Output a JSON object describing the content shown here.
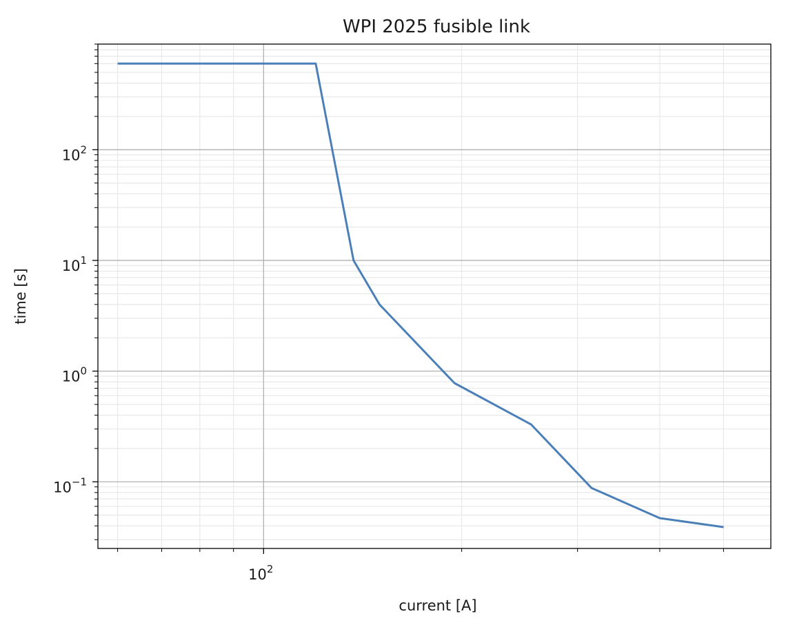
{
  "chart_data": {
    "type": "line",
    "title": "WPI 2025 fusible link",
    "xlabel": "current [A]",
    "ylabel": "time [s]",
    "xscale": "log",
    "yscale": "log",
    "xlim": [
      56,
      590
    ],
    "ylim": [
      0.025,
      900
    ],
    "grid": true,
    "x_major_ticks": [
      {
        "value": 100,
        "base": "10",
        "exp": "2"
      }
    ],
    "y_major_ticks": [
      {
        "value": 0.1,
        "base": "10",
        "exp": "−1"
      },
      {
        "value": 1,
        "base": "10",
        "exp": "0"
      },
      {
        "value": 10,
        "base": "10",
        "exp": "1"
      },
      {
        "value": 100,
        "base": "10",
        "exp": "2"
      }
    ],
    "series": [
      {
        "color": "#4a7fb8",
        "points": [
          [
            60,
            600
          ],
          [
            120,
            600
          ],
          [
            137,
            10
          ],
          [
            150,
            4
          ],
          [
            195,
            0.78
          ],
          [
            255,
            0.33
          ],
          [
            315,
            0.088
          ],
          [
            400,
            0.047
          ],
          [
            500,
            0.039
          ]
        ]
      }
    ]
  }
}
